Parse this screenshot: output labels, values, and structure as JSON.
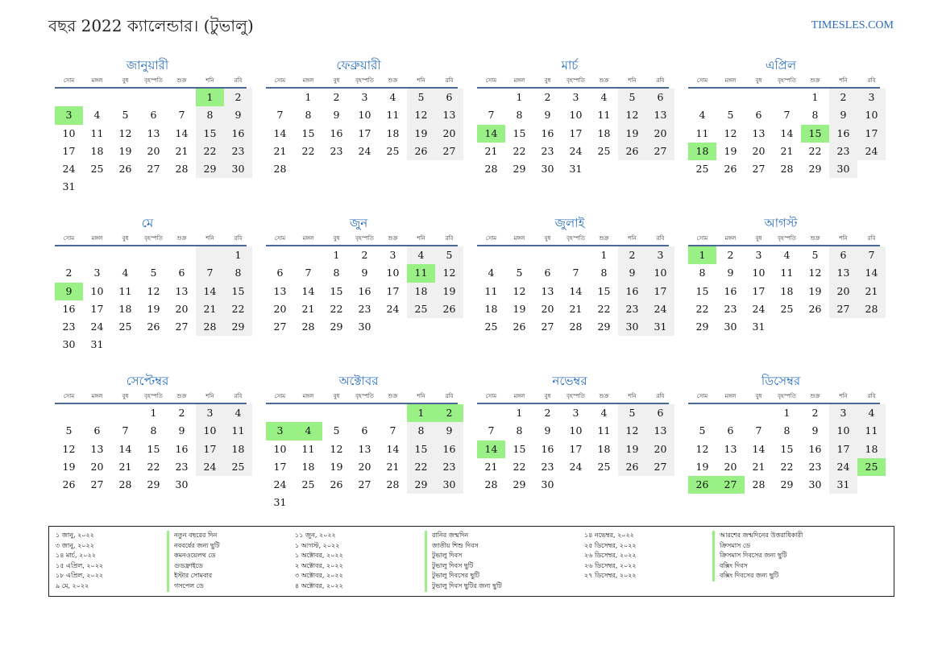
{
  "title": "বছর 2022 ক্যালেন্ডার। (টুভালু)",
  "brand": "TIMESLES.COM",
  "weekdays": [
    "সোম",
    "মঙ্গল",
    "বুধ",
    "বৃহস্পতি",
    "শুক্র",
    "শনি",
    "রবি"
  ],
  "months": [
    {
      "name": "জানুয়ারী",
      "offset": 5,
      "days": 31,
      "holidays": [
        1,
        3
      ]
    },
    {
      "name": "ফেব্রুয়ারী",
      "offset": 1,
      "days": 28,
      "holidays": []
    },
    {
      "name": "মার্চ",
      "offset": 1,
      "days": 31,
      "holidays": [
        14
      ]
    },
    {
      "name": "এপ্রিল",
      "offset": 4,
      "days": 30,
      "holidays": [
        15,
        18
      ]
    },
    {
      "name": "মে",
      "offset": 6,
      "days": 31,
      "holidays": [
        9
      ]
    },
    {
      "name": "জুন",
      "offset": 2,
      "days": 30,
      "holidays": [
        11
      ]
    },
    {
      "name": "জুলাই",
      "offset": 4,
      "days": 31,
      "holidays": []
    },
    {
      "name": "আগস্ট",
      "offset": 0,
      "days": 31,
      "holidays": [
        1
      ]
    },
    {
      "name": "সেপ্টেম্বর",
      "offset": 3,
      "days": 30,
      "holidays": []
    },
    {
      "name": "অক্টোবর",
      "offset": 5,
      "days": 31,
      "holidays": [
        1,
        2,
        3,
        4
      ]
    },
    {
      "name": "নভেম্বর",
      "offset": 1,
      "days": 30,
      "holidays": [
        14
      ]
    },
    {
      "name": "ডিসেম্বর",
      "offset": 3,
      "days": 31,
      "holidays": [
        25,
        26,
        27
      ]
    }
  ],
  "legend": [
    {
      "dates": [
        "১ জানু, ২০২২",
        "৩ জানু, ২০২২",
        "১৪ মার্চ, ২০২২",
        "১৫ এপ্রিল, ২০২২",
        "১৮ এপ্রিল, ২০২২",
        "৯ মে, ২০২২"
      ],
      "names": [
        "নতুন বছরের দিন",
        "নববর্ষের জন্য ছুটি",
        "কমনওয়েলথ ডে",
        "গুডফ্রাইডে",
        "ইস্টার সোমবার",
        "গসপেল ডে"
      ]
    },
    {
      "dates": [
        "১১ জুন, ২০২২",
        "১ আগস্ট, ২০২২",
        "১ অক্টোবর, ২০২২",
        "২ অক্টোবর, ২০২২",
        "৩ অক্টোবর, ২০২২",
        "৪ অক্টোবর, ২০২২"
      ],
      "names": [
        "রানির জন্মদিন",
        "জাতীয় শিশু দিবস",
        "টুভালু দিবস",
        "টুভালু দিবস ছুটি",
        "টুভালু দিবসের ছুটি",
        "টুভালু দিবস ছুটির জন্য ছুটি"
      ]
    },
    {
      "dates": [
        "১৪ নভেম্বর, ২০২২",
        "২৫ ডিসেম্বর, ২০২২",
        "২৬ ডিসেম্বর, ২০২২",
        "২৬ ডিসেম্বর, ২০২২",
        "২৭ ডিসেম্বর, ২০২২"
      ],
      "names": [
        "আরশের জন্মদিনের উত্তরাধিকারী",
        "ক্রিসমাস ডে",
        "ক্রিসমাস দিবসের জন্য ছুটি",
        "বক্সিং দিবস",
        "বক্সিং দিবসের জন্য ছুটি"
      ]
    }
  ]
}
